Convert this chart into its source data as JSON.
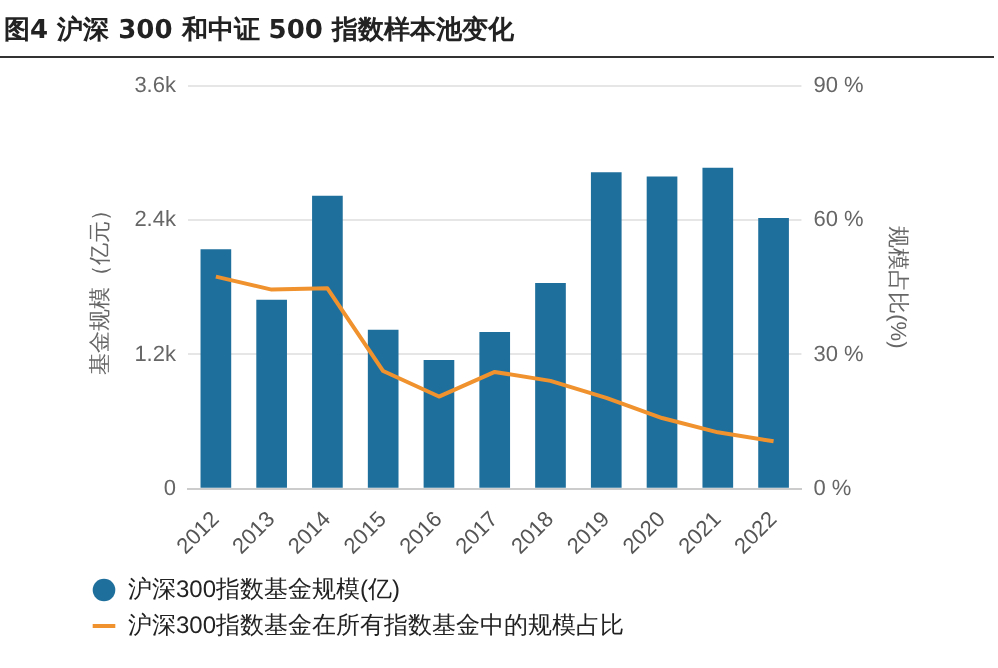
{
  "chart_data": {
    "type": "bar",
    "title": "图4 沪深 300 和中证 500 指数样本池变化",
    "ylabel": "基金规模（亿元）",
    "y2label": "规模占比(%)",
    "categories": [
      "2012",
      "2013",
      "2014",
      "2015",
      "2016",
      "2017",
      "2018",
      "2019",
      "2020",
      "2021",
      "2022"
    ],
    "series": [
      {
        "name": "沪深300指数基金规模(亿)",
        "color": "#1f6f9c",
        "values": [
          2140,
          1690,
          2620,
          1420,
          1150,
          1400,
          1840,
          2830,
          2790,
          2870,
          2420
        ]
      },
      {
        "name": "沪深300指数基金在所有指数基金中的规模占比",
        "type": "line",
        "axis": "y2",
        "color": "#f0922e",
        "values": [
          47.4,
          44.5,
          44.8,
          26.3,
          20.6,
          26.1,
          24.1,
          20.3,
          15.8,
          12.6,
          10.6
        ]
      }
    ],
    "ylim": [
      0,
      3600
    ],
    "yticks": [
      0,
      {
        "value": 1200,
        "label": "1.2k"
      },
      {
        "value": 2400,
        "label": "2.4k"
      },
      {
        "value": 3600,
        "label": "3.6k"
      }
    ],
    "y2lim": [
      0,
      90
    ],
    "y2ticks": [
      {
        "value": 0,
        "label": "0 %"
      },
      {
        "value": 30,
        "label": "30 %"
      },
      {
        "value": 60,
        "label": "60 %"
      },
      {
        "value": 90,
        "label": "90 %"
      }
    ],
    "grid": "y",
    "legend": "bottom",
    "marker": "none"
  }
}
